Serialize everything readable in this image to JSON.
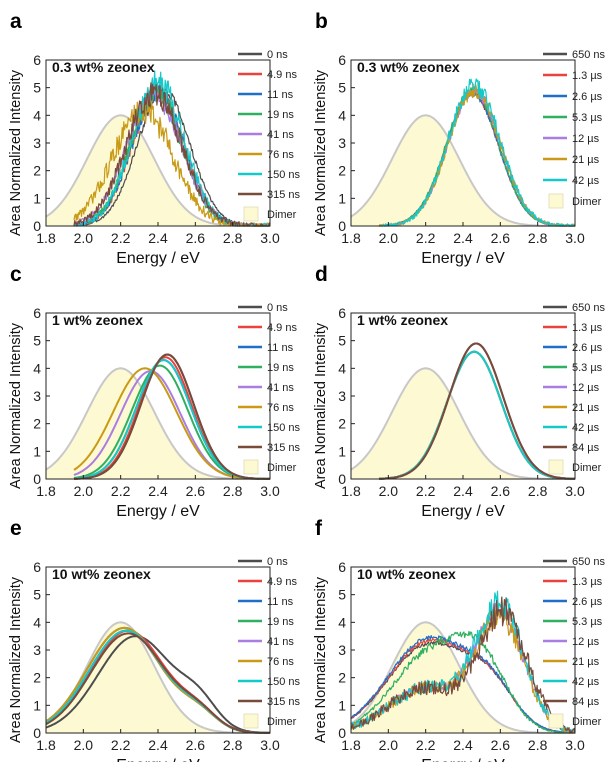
{
  "panel_letters": [
    "a",
    "b",
    "c",
    "d",
    "e",
    "f"
  ],
  "colors": {
    "dimer_fill": "#fdf9d3",
    "dimer_line": "#c8c8c8",
    "axis": "#222222",
    "ns_series": [
      "#4d4d4d",
      "#e8433e",
      "#1f6fc9",
      "#2fb060",
      "#a97ee0",
      "#c99a15",
      "#17c8c8",
      "#7a4a3a"
    ],
    "us_series": [
      "#4d4d4d",
      "#e8433e",
      "#1f6fc9",
      "#2fb060",
      "#a97ee0",
      "#c99a15",
      "#17c8c8",
      "#7a4a3a"
    ]
  },
  "chart_data": [
    {
      "type": "line",
      "panel": "a",
      "title": "0.3 wt% zeonex",
      "xlabel": "Energy / eV",
      "ylabel": "Area Normalized Intensity",
      "xlim": [
        1.8,
        3.0
      ],
      "ylim": [
        0,
        6
      ],
      "xticks": [
        "1.8",
        "2.0",
        "2.2",
        "2.4",
        "2.6",
        "2.8",
        "3.0"
      ],
      "yticks": [
        "0",
        "1",
        "2",
        "3",
        "4",
        "5",
        "6"
      ],
      "dimer": {
        "label": "Dimer",
        "center": 2.2,
        "width": 0.18,
        "peak": 4.0,
        "x_min": 1.8,
        "x_max": 3.0
      },
      "series": [
        {
          "name": "0 ns",
          "center": 2.43,
          "width": 0.14,
          "peak": 4.9,
          "x_min": 1.95,
          "x_max": 3.0,
          "noise": 0.12
        },
        {
          "name": "4.9 ns",
          "center": 2.4,
          "width": 0.14,
          "peak": 4.8,
          "x_min": 1.95,
          "x_max": 3.0,
          "noise": 0.25
        },
        {
          "name": "11 ns",
          "center": 2.4,
          "width": 0.14,
          "peak": 4.8,
          "x_min": 1.95,
          "x_max": 3.0,
          "noise": 0.25
        },
        {
          "name": "19 ns",
          "center": 2.39,
          "width": 0.14,
          "peak": 4.8,
          "x_min": 1.95,
          "x_max": 3.0,
          "noise": 0.3
        },
        {
          "name": "41 ns",
          "center": 2.38,
          "width": 0.15,
          "peak": 4.7,
          "x_min": 1.95,
          "x_max": 3.0,
          "noise": 0.3
        },
        {
          "name": "76 ns",
          "center": 2.32,
          "width": 0.16,
          "peak": 4.2,
          "x_min": 1.95,
          "x_max": 3.0,
          "noise": 0.4
        },
        {
          "name": "150 ns",
          "center": 2.4,
          "width": 0.14,
          "peak": 5.2,
          "x_min": 1.95,
          "x_max": 3.0,
          "noise": 0.35
        },
        {
          "name": "315 ns",
          "center": 2.38,
          "width": 0.15,
          "peak": 4.8,
          "x_min": 1.95,
          "x_max": 3.0,
          "noise": 0.35
        }
      ]
    },
    {
      "type": "line",
      "panel": "b",
      "title": "0.3 wt% zeonex",
      "xlabel": "Energy / eV",
      "ylabel": "Area Normalized Intensity",
      "xlim": [
        1.8,
        3.0
      ],
      "ylim": [
        0,
        6
      ],
      "xticks": [
        "1.8",
        "2.0",
        "2.2",
        "2.4",
        "2.6",
        "2.8",
        "3.0"
      ],
      "yticks": [
        "0",
        "1",
        "2",
        "3",
        "4",
        "5",
        "6"
      ],
      "dimer": {
        "label": "Dimer",
        "center": 2.2,
        "width": 0.18,
        "peak": 4.0,
        "x_min": 1.8,
        "x_max": 3.0
      },
      "series": [
        {
          "name": "650 ns",
          "center": 2.45,
          "width": 0.14,
          "peak": 4.8,
          "x_min": 1.95,
          "x_max": 3.0,
          "noise": 0.08
        },
        {
          "name": "1.3 µs",
          "center": 2.45,
          "width": 0.14,
          "peak": 4.8,
          "x_min": 1.95,
          "x_max": 3.0,
          "noise": 0.08
        },
        {
          "name": "2.6 µs",
          "center": 2.45,
          "width": 0.14,
          "peak": 4.8,
          "x_min": 1.95,
          "x_max": 3.0,
          "noise": 0.1
        },
        {
          "name": "5.3 µs",
          "center": 2.45,
          "width": 0.14,
          "peak": 4.9,
          "x_min": 1.95,
          "x_max": 3.0,
          "noise": 0.12
        },
        {
          "name": "12 µs",
          "center": 2.46,
          "width": 0.14,
          "peak": 4.9,
          "x_min": 1.95,
          "x_max": 3.0,
          "noise": 0.15
        },
        {
          "name": "21 µs",
          "center": 2.46,
          "width": 0.14,
          "peak": 4.9,
          "x_min": 1.95,
          "x_max": 3.0,
          "noise": 0.2
        },
        {
          "name": "42 µs",
          "center": 2.46,
          "width": 0.14,
          "peak": 5.1,
          "x_min": 1.95,
          "x_max": 3.0,
          "noise": 0.25
        }
      ]
    },
    {
      "type": "line",
      "panel": "c",
      "title": "1 wt% zeonex",
      "xlabel": "Energy / eV",
      "ylabel": "Area Normalized Intensity",
      "xlim": [
        1.8,
        3.0
      ],
      "ylim": [
        0,
        6
      ],
      "xticks": [
        "1.8",
        "2.0",
        "2.2",
        "2.4",
        "2.6",
        "2.8",
        "3.0"
      ],
      "yticks": [
        "0",
        "1",
        "2",
        "3",
        "4",
        "5",
        "6"
      ],
      "dimer": {
        "label": "Dimer",
        "center": 2.2,
        "width": 0.18,
        "peak": 4.0,
        "x_min": 1.8,
        "x_max": 3.0
      },
      "series": [
        {
          "name": "0 ns",
          "center": 2.45,
          "width": 0.14,
          "peak": 4.5,
          "x_min": 1.95,
          "x_max": 3.0,
          "noise": 0
        },
        {
          "name": "4.9 ns",
          "center": 2.44,
          "width": 0.14,
          "peak": 4.4,
          "x_min": 1.95,
          "x_max": 3.0,
          "noise": 0
        },
        {
          "name": "11 ns",
          "center": 2.43,
          "width": 0.145,
          "peak": 4.3,
          "x_min": 1.95,
          "x_max": 3.0,
          "noise": 0
        },
        {
          "name": "19 ns",
          "center": 2.41,
          "width": 0.15,
          "peak": 4.1,
          "x_min": 1.95,
          "x_max": 3.0,
          "noise": 0
        },
        {
          "name": "41 ns",
          "center": 2.36,
          "width": 0.16,
          "peak": 3.9,
          "x_min": 1.95,
          "x_max": 3.0,
          "noise": 0
        },
        {
          "name": "76 ns",
          "center": 2.33,
          "width": 0.17,
          "peak": 4.0,
          "x_min": 1.95,
          "x_max": 3.0,
          "noise": 0
        },
        {
          "name": "150 ns",
          "center": 2.43,
          "width": 0.145,
          "peak": 4.3,
          "x_min": 1.95,
          "x_max": 3.0,
          "noise": 0
        },
        {
          "name": "315 ns",
          "center": 2.45,
          "width": 0.14,
          "peak": 4.5,
          "x_min": 1.95,
          "x_max": 3.0,
          "noise": 0
        }
      ]
    },
    {
      "type": "line",
      "panel": "d",
      "title": "1 wt% zeonex",
      "xlabel": "Energy / eV",
      "ylabel": "Area Normalized Intensity",
      "xlim": [
        1.8,
        3.0
      ],
      "ylim": [
        0,
        6
      ],
      "xticks": [
        "1.8",
        "2.0",
        "2.2",
        "2.4",
        "2.6",
        "2.8",
        "3.0"
      ],
      "yticks": [
        "0",
        "1",
        "2",
        "3",
        "4",
        "5",
        "6"
      ],
      "dimer": {
        "label": "Dimer",
        "center": 2.2,
        "width": 0.18,
        "peak": 4.0,
        "x_min": 1.8,
        "x_max": 3.0
      },
      "series": [
        {
          "name": "650 ns",
          "center": 2.47,
          "width": 0.145,
          "peak": 4.9,
          "x_min": 1.95,
          "x_max": 3.0,
          "noise": 0
        },
        {
          "name": "1.3 µs",
          "center": 2.46,
          "width": 0.145,
          "peak": 4.6,
          "x_min": 1.95,
          "x_max": 3.0,
          "noise": 0
        },
        {
          "name": "2.6 µs",
          "center": 2.46,
          "width": 0.145,
          "peak": 4.6,
          "x_min": 1.95,
          "x_max": 3.0,
          "noise": 0
        },
        {
          "name": "5.3 µs",
          "center": 2.46,
          "width": 0.145,
          "peak": 4.6,
          "x_min": 1.95,
          "x_max": 3.0,
          "noise": 0
        },
        {
          "name": "12 µs",
          "center": 2.46,
          "width": 0.145,
          "peak": 4.6,
          "x_min": 1.95,
          "x_max": 3.0,
          "noise": 0
        },
        {
          "name": "21 µs",
          "center": 2.46,
          "width": 0.145,
          "peak": 4.6,
          "x_min": 1.95,
          "x_max": 3.0,
          "noise": 0
        },
        {
          "name": "42 µs",
          "center": 2.46,
          "width": 0.145,
          "peak": 4.6,
          "x_min": 1.95,
          "x_max": 3.0,
          "noise": 0
        },
        {
          "name": "84 µs",
          "center": 2.47,
          "width": 0.145,
          "peak": 4.9,
          "x_min": 1.95,
          "x_max": 3.0,
          "noise": 0
        }
      ]
    },
    {
      "type": "line",
      "panel": "e",
      "title": "10 wt% zeonex",
      "xlabel": "Energy / eV",
      "ylabel": "Area Normalized Intensity",
      "xlim": [
        1.8,
        3.0
      ],
      "ylim": [
        0,
        6
      ],
      "xticks": [
        "1.8",
        "2.0",
        "2.2",
        "2.4",
        "2.6",
        "2.8",
        "3.0"
      ],
      "yticks": [
        "0",
        "1",
        "2",
        "3",
        "4",
        "5",
        "6"
      ],
      "dimer": {
        "label": "Dimer",
        "center": 2.2,
        "width": 0.18,
        "peak": 4.0,
        "x_min": 1.8,
        "x_max": 3.0
      },
      "series": [
        {
          "name": "0 ns",
          "center": 2.28,
          "width": 0.2,
          "peak": 3.5,
          "x_min": 1.8,
          "x_max": 3.0,
          "noise": 0
        },
        {
          "name": "4.9 ns",
          "center": 2.24,
          "width": 0.2,
          "peak": 3.7,
          "x_min": 1.8,
          "x_max": 3.0,
          "noise": 0
        },
        {
          "name": "11 ns",
          "center": 2.23,
          "width": 0.2,
          "peak": 3.7,
          "x_min": 1.8,
          "x_max": 3.0,
          "noise": 0
        },
        {
          "name": "19 ns",
          "center": 2.22,
          "width": 0.2,
          "peak": 3.8,
          "x_min": 1.8,
          "x_max": 3.0,
          "noise": 0
        },
        {
          "name": "41 ns",
          "center": 2.22,
          "width": 0.2,
          "peak": 3.8,
          "x_min": 1.8,
          "x_max": 3.0,
          "noise": 0
        },
        {
          "name": "76 ns",
          "center": 2.22,
          "width": 0.2,
          "peak": 3.8,
          "x_min": 1.8,
          "x_max": 3.0,
          "noise": 0
        },
        {
          "name": "150 ns",
          "center": 2.23,
          "width": 0.2,
          "peak": 3.7,
          "x_min": 1.8,
          "x_max": 3.0,
          "noise": 0
        },
        {
          "name": "315 ns",
          "center": 2.24,
          "width": 0.2,
          "peak": 3.6,
          "x_min": 1.8,
          "x_max": 3.0,
          "noise": 0
        }
      ]
    },
    {
      "type": "line",
      "panel": "f",
      "title": "10 wt% zeonex",
      "xlabel": "Energy / eV",
      "ylabel": "Area Normalized Intensity",
      "xlim": [
        1.8,
        3.0
      ],
      "ylim": [
        0,
        6
      ],
      "xticks": [
        "1.8",
        "2.0",
        "2.2",
        "2.4",
        "2.6",
        "2.8",
        "3.0"
      ],
      "yticks": [
        "0",
        "1",
        "2",
        "3",
        "4",
        "5",
        "6"
      ],
      "dimer": {
        "label": "Dimer",
        "center": 2.2,
        "width": 0.18,
        "peak": 4.0,
        "x_min": 1.8,
        "x_max": 3.0
      },
      "series": [
        {
          "name": "650 ns",
          "center": 2.22,
          "width": 0.22,
          "peak": 3.2,
          "x_min": 1.8,
          "x_max": 3.0,
          "noise": 0.05
        },
        {
          "name": "1.3 µs",
          "center": 2.22,
          "width": 0.22,
          "peak": 3.3,
          "x_min": 1.8,
          "x_max": 3.0,
          "noise": 0.06
        },
        {
          "name": "2.6 µs",
          "center": 2.22,
          "width": 0.22,
          "peak": 3.4,
          "x_min": 1.8,
          "x_max": 3.0,
          "noise": 0.06
        },
        {
          "name": "5.3 µs",
          "center": 2.22,
          "width": 0.2,
          "peak": 2.8,
          "x_min": 1.8,
          "x_max": 3.0,
          "noise": 0.1
        },
        {
          "name": "12 µs",
          "center": 2.6,
          "width": 0.13,
          "peak": 4.2,
          "x_min": 1.8,
          "x_max": 3.0,
          "noise": 0.25
        },
        {
          "name": "21 µs",
          "center": 2.6,
          "width": 0.13,
          "peak": 4.0,
          "x_min": 1.8,
          "x_max": 3.0,
          "noise": 0.3
        },
        {
          "name": "42 µs",
          "center": 2.6,
          "width": 0.13,
          "peak": 4.4,
          "x_min": 1.8,
          "x_max": 3.0,
          "noise": 0.4
        },
        {
          "name": "84 µs",
          "center": 2.62,
          "width": 0.13,
          "peak": 4.2,
          "x_min": 1.8,
          "x_max": 3.0,
          "noise": 0.4
        }
      ]
    }
  ]
}
